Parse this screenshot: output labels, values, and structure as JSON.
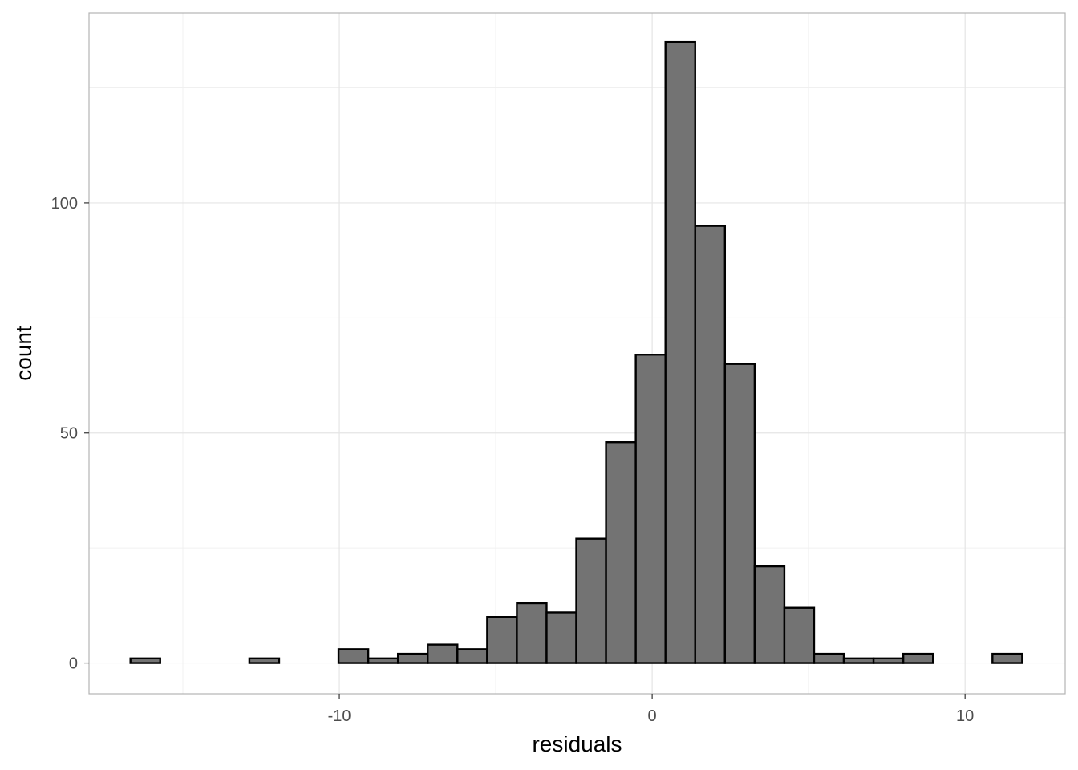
{
  "chart_data": {
    "type": "bar",
    "subtype": "histogram",
    "title": "",
    "xlabel": "residuals",
    "ylabel": "count",
    "x_ticks": [
      -10,
      0,
      10
    ],
    "x_tick_labels": [
      "-10",
      "0",
      "10"
    ],
    "y_ticks": [
      0,
      50,
      100
    ],
    "y_tick_labels": [
      "0",
      "50",
      "100"
    ],
    "xlim": [
      -18.0,
      13.2
    ],
    "ylim": [
      -6.7,
      141.3
    ],
    "bin_width": 0.95,
    "bins": [
      {
        "x": -16.2,
        "count": 1
      },
      {
        "x": -15.25,
        "count": 0
      },
      {
        "x": -14.3,
        "count": 0
      },
      {
        "x": -13.35,
        "count": 0
      },
      {
        "x": -12.4,
        "count": 1
      },
      {
        "x": -11.45,
        "count": 0
      },
      {
        "x": -10.5,
        "count": 0
      },
      {
        "x": -9.55,
        "count": 3
      },
      {
        "x": -8.6,
        "count": 1
      },
      {
        "x": -7.65,
        "count": 2
      },
      {
        "x": -6.7,
        "count": 4
      },
      {
        "x": -5.75,
        "count": 3
      },
      {
        "x": -4.8,
        "count": 10
      },
      {
        "x": -3.85,
        "count": 13
      },
      {
        "x": -2.9,
        "count": 11
      },
      {
        "x": -1.95,
        "count": 27
      },
      {
        "x": -1.0,
        "count": 48
      },
      {
        "x": -0.05,
        "count": 67
      },
      {
        "x": 0.9,
        "count": 135
      },
      {
        "x": 1.85,
        "count": 95
      },
      {
        "x": 2.8,
        "count": 65
      },
      {
        "x": 3.75,
        "count": 21
      },
      {
        "x": 4.7,
        "count": 12
      },
      {
        "x": 5.65,
        "count": 2
      },
      {
        "x": 6.6,
        "count": 1
      },
      {
        "x": 7.55,
        "count": 1
      },
      {
        "x": 8.5,
        "count": 2
      },
      {
        "x": 9.45,
        "count": 0
      },
      {
        "x": 10.4,
        "count": 0
      },
      {
        "x": 11.35,
        "count": 2
      }
    ],
    "grid": true,
    "colors": {
      "fill": "#737373",
      "outline": "#000000",
      "panel_border": "#b3b3b3",
      "grid_major": "#e5e5e5",
      "grid_minor": "#f0f0f0"
    }
  }
}
